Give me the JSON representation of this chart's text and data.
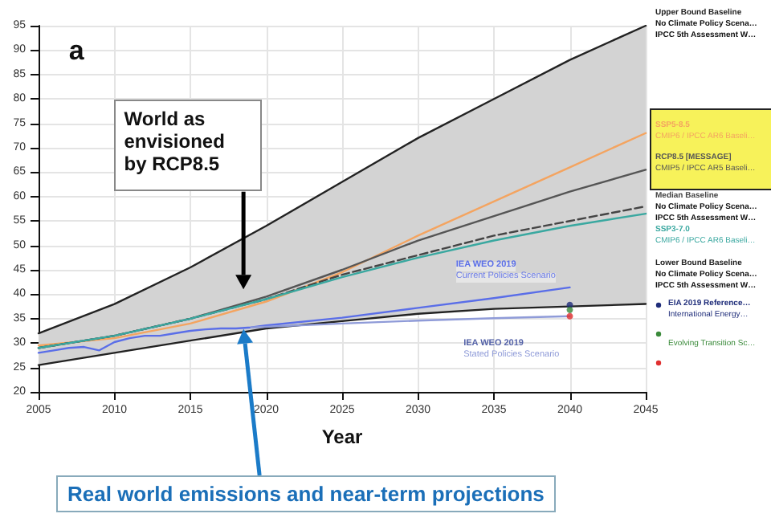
{
  "chart_data": {
    "type": "line",
    "xlabel": "Year",
    "x": [
      2005,
      2010,
      2015,
      2020,
      2025,
      2030,
      2035,
      2040,
      2045
    ],
    "xlim": [
      2005,
      2045
    ],
    "xticks": [
      2005,
      2010,
      2015,
      2020,
      2025,
      2030,
      2035,
      2040,
      2045
    ],
    "ylim": [
      20,
      95
    ],
    "yticks": [
      20,
      25,
      30,
      35,
      40,
      45,
      50,
      55,
      60,
      65,
      70,
      75,
      80,
      85,
      90,
      95
    ],
    "grid": true,
    "series": [
      {
        "name": "Upper Bound Baseline",
        "color": "#222222",
        "values": [
          32,
          38,
          45.5,
          54,
          63,
          72,
          80,
          88,
          95
        ]
      },
      {
        "name": "SSP5-8.5",
        "color": "#f4a460",
        "values": [
          29.5,
          31,
          34,
          38.5,
          44.5,
          52,
          59,
          66,
          73
        ]
      },
      {
        "name": "RCP8.5 [MESSAGE]",
        "color": "#555555",
        "values": [
          29,
          31.5,
          35,
          39.5,
          45,
          51,
          56,
          61,
          65.5
        ]
      },
      {
        "name": "Median Baseline",
        "color": "#444444",
        "line_style": "dashed",
        "values": [
          29,
          31.5,
          35,
          39,
          44,
          48,
          52,
          55,
          58
        ],
        "lower": [
          25.5,
          28,
          30.5,
          33,
          34.5,
          36,
          37,
          37.5,
          38
        ],
        "upper": [
          32,
          38,
          45.5,
          54,
          63,
          72,
          80,
          88,
          95
        ]
      },
      {
        "name": "SSP3-7.0",
        "color": "#3aa8a0",
        "values": [
          29,
          31.5,
          35,
          39,
          43.5,
          47.5,
          51,
          54,
          56.5
        ]
      },
      {
        "name": "Lower Bound Baseline",
        "color": "#222222",
        "values": [
          25.5,
          28,
          30.5,
          33,
          34.5,
          36,
          37,
          37.5,
          38
        ]
      },
      {
        "color": "#5a6ee8",
        "x": [
          2005,
          2006,
          2007,
          2008,
          2009,
          2010,
          2011,
          2012,
          2013,
          2014,
          2015,
          2016,
          2017,
          2018,
          2019,
          2020,
          2025,
          2030,
          2035,
          2040
        ],
        "values": [
          28,
          28.5,
          29,
          29.2,
          28.5,
          30.2,
          31,
          31.5,
          31.5,
          32,
          32.5,
          32.8,
          33,
          33,
          33.2,
          33.6,
          35.2,
          37.2,
          39.2,
          41.4
        ]
      },
      {
        "color": "#8f9bd8",
        "x": [
          2019,
          2025,
          2030,
          2035,
          2040
        ],
        "values": [
          33.2,
          34,
          34.6,
          35.1,
          35.5
        ]
      },
      {
        "name": "EIA 2019 Reference…",
        "type": "scatter",
        "color": "#1f2d7a",
        "x": [
          2040
        ],
        "values": [
          37.8
        ]
      },
      {
        "type": "scatter",
        "color": "#3a8a3a",
        "x": [
          2040
        ],
        "values": [
          36.8
        ]
      },
      {
        "type": "scatter",
        "color": "#e03030",
        "x": [
          2040
        ],
        "values": [
          35.5
        ]
      }
    ],
    "annotations": [
      "a",
      "World as envisioned by RCP8.5",
      "Real world emissions and near-term projections",
      "IEA WEO 2019",
      "Current Policies Scenario",
      "IEA WEO 2019",
      "Stated Policies Scenario",
      "No Climate Policy Scena…",
      "IPCC 5th Assessment W…",
      "CMIP6 / IPCC AR6 Baseli…",
      "CMIP5 / IPCC AR5 Baseli…",
      "No Climate Policy Scena…",
      "IPCC 5th Assessment W…",
      "CMIP6 / IPCC AR6 Baseli…",
      "No Climate Policy Scena…",
      "IPCC 5th Assessment W…",
      "International Energy…",
      "Evolving Transition Sc…"
    ]
  }
}
